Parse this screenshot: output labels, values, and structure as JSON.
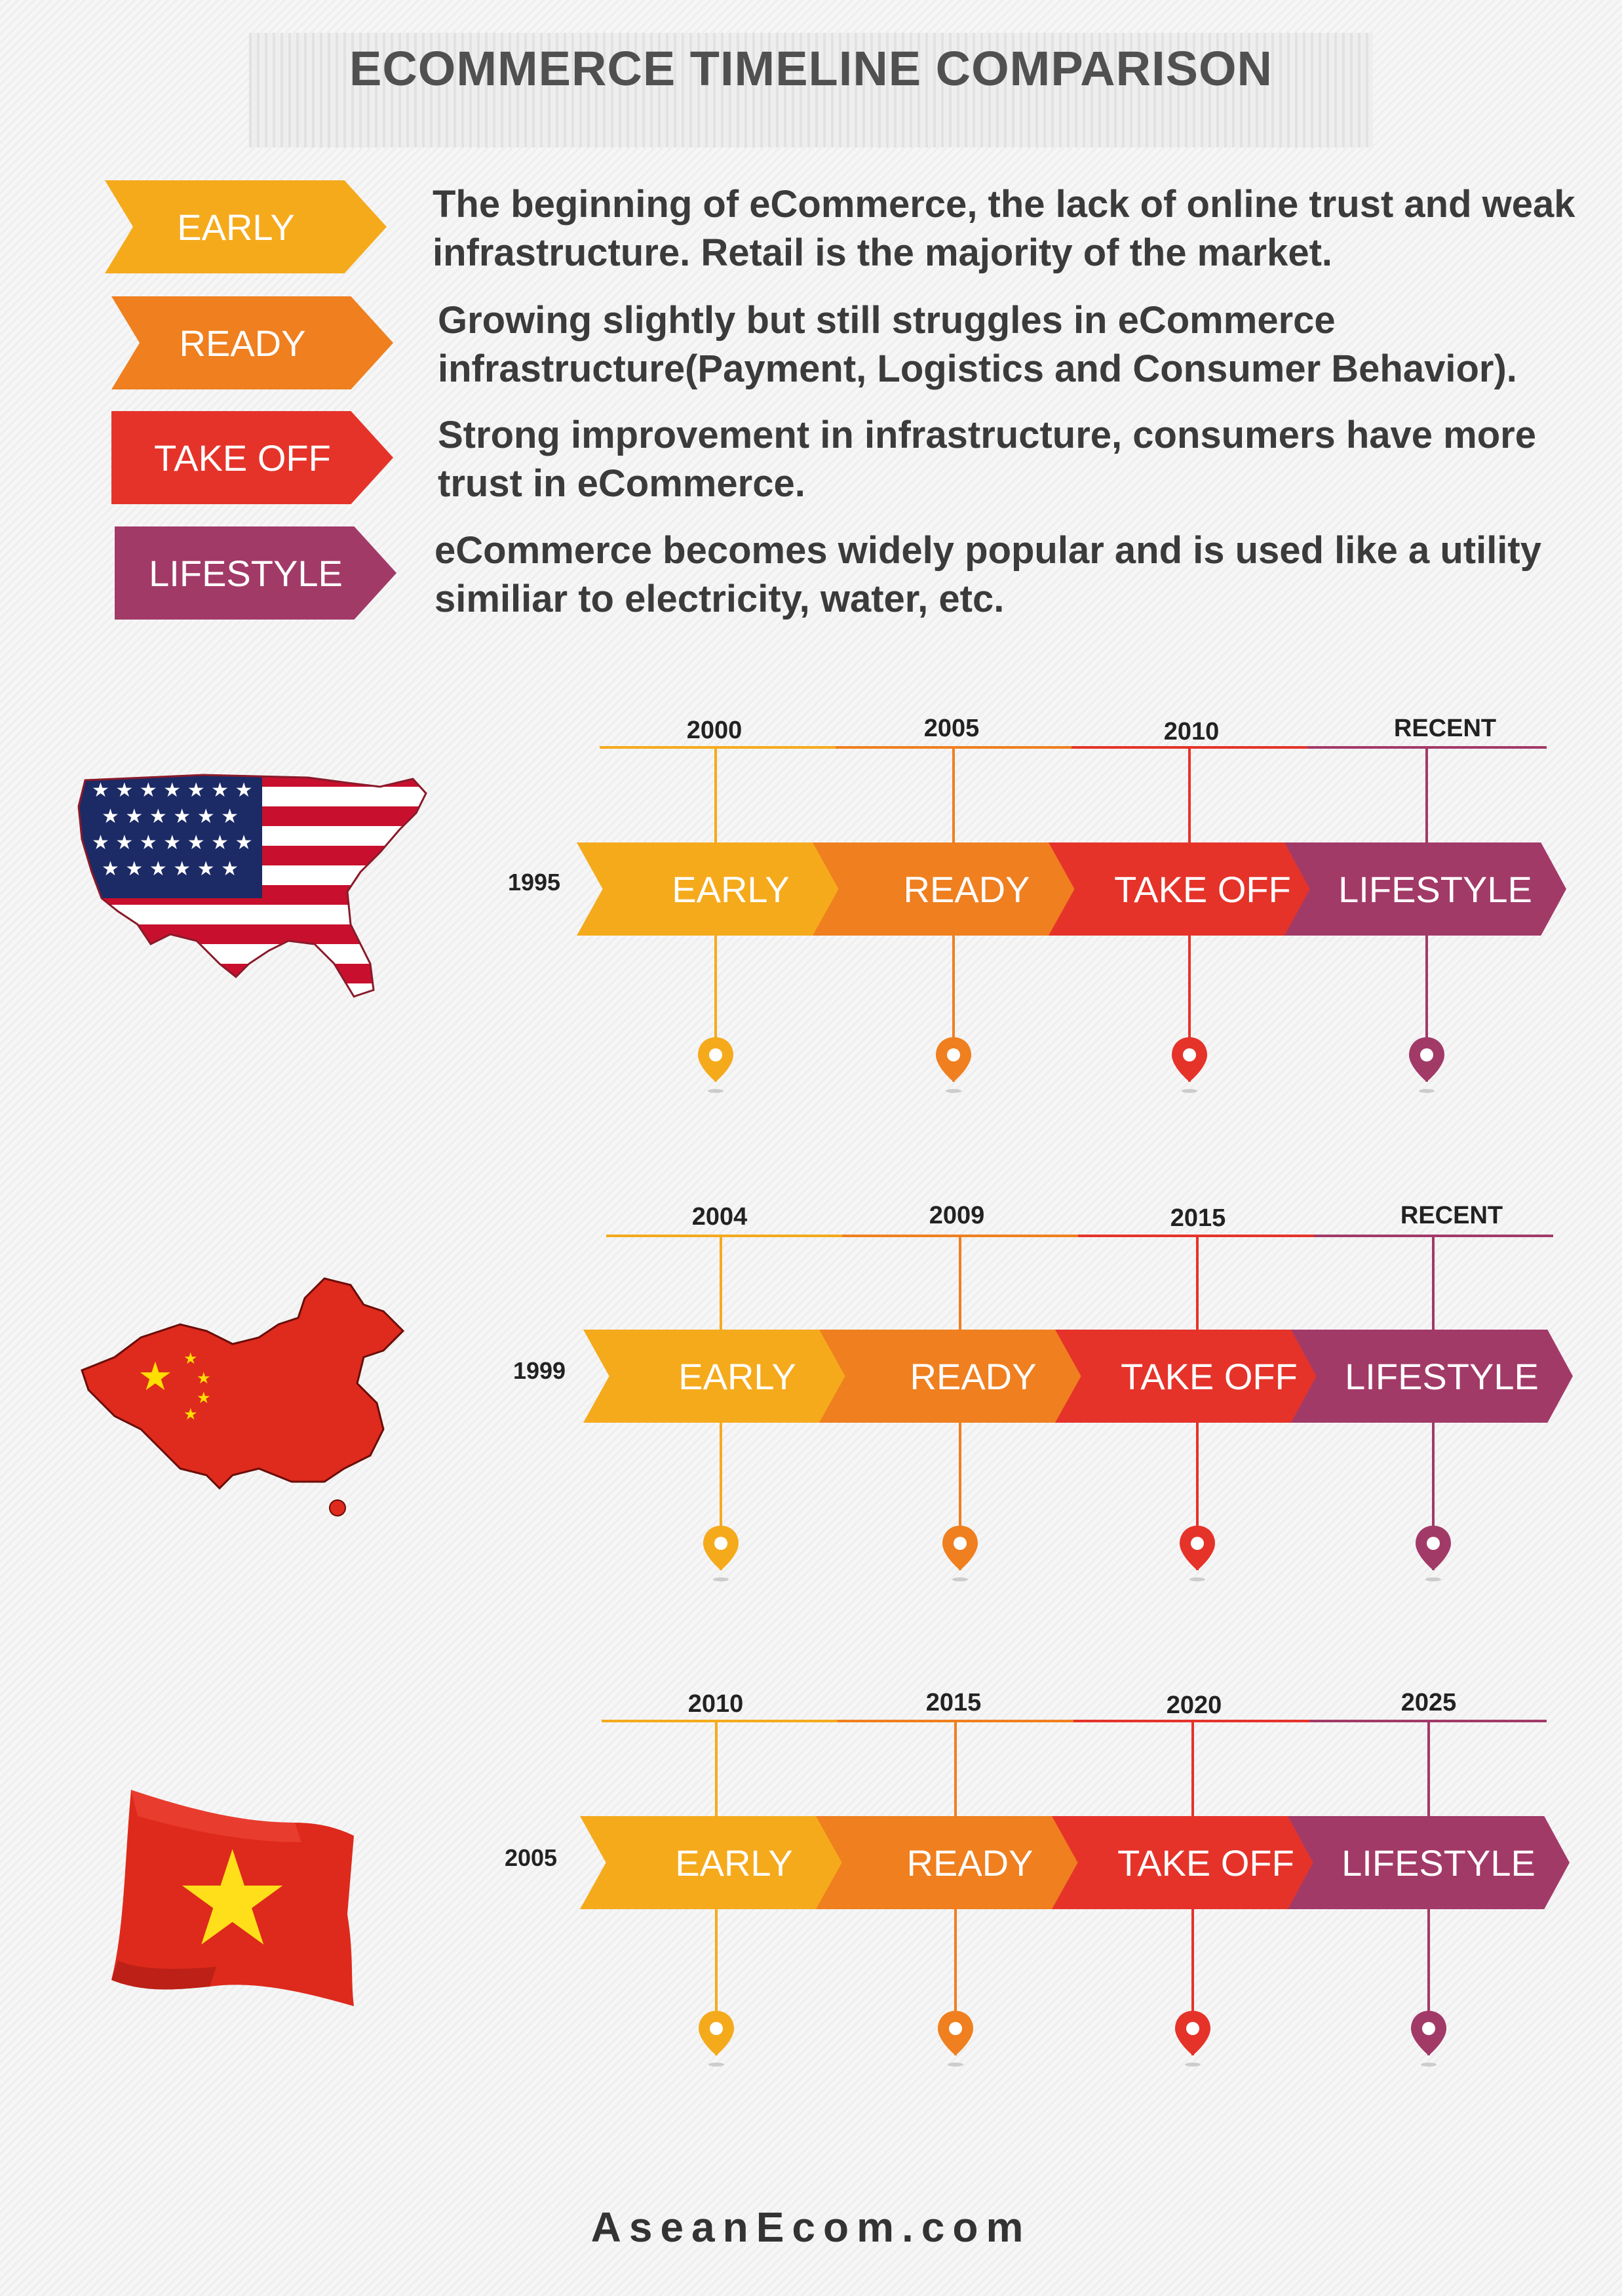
{
  "title": "ECOMMERCE TIMELINE COMPARISON",
  "colors": {
    "early": "#f5aa1c",
    "ready": "#ef7f1f",
    "takeoff": "#e5332a",
    "lifestyle": "#a23a68"
  },
  "legend": [
    {
      "stage": "EARLY",
      "description": "The beginning of eCommerce, the lack of online trust and weak infrastructure. Retail is the majority of the market."
    },
    {
      "stage": "READY",
      "description": "Growing slightly but still struggles in eCommerce infrastructure(Payment, Logistics and Consumer Behavior)."
    },
    {
      "stage": "TAKE OFF",
      "description": "Strong improvement in infrastructure, consumers have more trust in eCommerce."
    },
    {
      "stage": "LIFESTYLE",
      "description": "eCommerce becomes widely popular and is used like a utility similiar to electricity, water, etc."
    }
  ],
  "timelines": [
    {
      "country_icon": "usa-map-flag-icon",
      "start_year": "1995",
      "milestones": [
        "2000",
        "2005",
        "2010",
        "RECENT"
      ],
      "stages": [
        "EARLY",
        "READY",
        "TAKE OFF",
        "LIFESTYLE"
      ]
    },
    {
      "country_icon": "china-map-flag-icon",
      "start_year": "1999",
      "milestones": [
        "2004",
        "2009",
        "2015",
        "RECENT"
      ],
      "stages": [
        "EARLY",
        "READY",
        "TAKE OFF",
        "LIFESTYLE"
      ]
    },
    {
      "country_icon": "vietnam-flag-icon",
      "start_year": "2005",
      "milestones": [
        "2010",
        "2015",
        "2020",
        "2025"
      ],
      "stages": [
        "EARLY",
        "READY",
        "TAKE OFF",
        "LIFESTYLE"
      ]
    }
  ],
  "footer": "AseanEcom.com"
}
